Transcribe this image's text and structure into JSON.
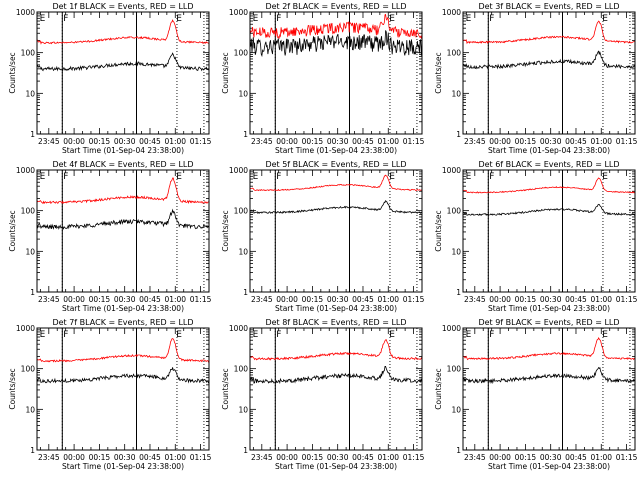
{
  "figure": {
    "background": "#ffffff",
    "axis_color": "#000000",
    "events_color": "#000000",
    "lld_color": "#ff0000"
  },
  "chart_data": [
    {
      "type": "line",
      "title": "Det 1f BLACK = Events, RED = LLD",
      "xlabel": "Start Time (01-Sep-04 23:38:00)",
      "ylabel": "Counts/sec",
      "xlim": [
        "23:38:00",
        "01:20:00"
      ],
      "ylim": [
        1,
        1000
      ],
      "yscale": "log",
      "xticks": [
        "23:45",
        "00:00",
        "00:15",
        "00:30",
        "00:45",
        "01:00",
        "01:15"
      ],
      "yticks": [
        "1",
        "10",
        "100",
        "1000"
      ],
      "vlines_solid": [
        "23:53:00",
        "00:37:00"
      ],
      "vlines_dotted": [
        "23:53:00",
        "01:01:00",
        "01:17:00"
      ],
      "markers": [
        {
          "label": "E",
          "time": "23:39:00"
        },
        {
          "label": "F",
          "time": "23:53:00"
        },
        {
          "label": "E",
          "time": "01:00:00"
        }
      ],
      "series": [
        {
          "name": "Events",
          "color": "#000000",
          "level": 40,
          "flare_peak": 85,
          "noise": 0.1
        },
        {
          "name": "LLD",
          "color": "#ff0000",
          "level": 175,
          "flare_peak": 590,
          "noise": 0.05
        }
      ]
    },
    {
      "type": "line",
      "title": "Det 2f BLACK = Events, RED = LLD",
      "xlabel": "Start Time (01-Sep-04 23:38:00)",
      "ylabel": "Counts/sec",
      "xlim": [
        "23:38:00",
        "01:20:00"
      ],
      "ylim": [
        1,
        1000
      ],
      "yscale": "log",
      "xticks": [
        "23:45",
        "00:00",
        "00:15",
        "00:30",
        "00:45",
        "01:00",
        "01:15"
      ],
      "yticks": [
        "1",
        "10",
        "100",
        "1000"
      ],
      "vlines_solid": [
        "23:53:00",
        "00:37:00"
      ],
      "vlines_dotted": [
        "23:53:00",
        "01:01:00",
        "01:17:00"
      ],
      "markers": [
        {
          "label": "E",
          "time": "23:39:00"
        },
        {
          "label": "F",
          "time": "23:53:00"
        },
        {
          "label": "E",
          "time": "01:00:00"
        }
      ],
      "series": [
        {
          "name": "Events",
          "color": "#000000",
          "level": 150,
          "flare_peak": 240,
          "noise": 0.45
        },
        {
          "name": "LLD",
          "color": "#ff0000",
          "level": 320,
          "flare_peak": 700,
          "noise": 0.3
        }
      ]
    },
    {
      "type": "line",
      "title": "Det 3f BLACK = Events, RED = LLD",
      "xlabel": "Start Time (01-Sep-04 23:38:00)",
      "ylabel": "Counts/sec",
      "xlim": [
        "23:38:00",
        "01:20:00"
      ],
      "ylim": [
        1,
        1000
      ],
      "yscale": "log",
      "xticks": [
        "23:45",
        "00:00",
        "00:15",
        "00:30",
        "00:45",
        "01:00",
        "01:15"
      ],
      "yticks": [
        "1",
        "10",
        "100",
        "1000"
      ],
      "vlines_solid": [
        "23:53:00",
        "00:37:00"
      ],
      "vlines_dotted": [
        "23:53:00",
        "01:01:00",
        "01:17:00"
      ],
      "markers": [
        {
          "label": "E",
          "time": "23:39:00"
        },
        {
          "label": "F",
          "time": "23:53:00"
        },
        {
          "label": "E",
          "time": "01:00:00"
        }
      ],
      "series": [
        {
          "name": "Events",
          "color": "#000000",
          "level": 45,
          "flare_peak": 95,
          "noise": 0.1
        },
        {
          "name": "LLD",
          "color": "#ff0000",
          "level": 180,
          "flare_peak": 560,
          "noise": 0.05
        }
      ]
    },
    {
      "type": "line",
      "title": "Det 4f BLACK = Events, RED = LLD",
      "xlabel": "Start Time (01-Sep-04 23:38:00)",
      "ylabel": "Counts/sec",
      "xlim": [
        "23:38:00",
        "01:20:00"
      ],
      "ylim": [
        1,
        1000
      ],
      "yscale": "log",
      "xticks": [
        "23:45",
        "00:00",
        "00:15",
        "00:30",
        "00:45",
        "01:00",
        "01:15"
      ],
      "yticks": [
        "1",
        "10",
        "100",
        "1000"
      ],
      "vlines_solid": [
        "23:53:00",
        "00:37:00"
      ],
      "vlines_dotted": [
        "23:53:00",
        "01:01:00",
        "01:17:00"
      ],
      "markers": [
        {
          "label": "E",
          "time": "23:39:00"
        },
        {
          "label": "F",
          "time": "23:53:00"
        },
        {
          "label": "E",
          "time": "01:00:00"
        }
      ],
      "series": [
        {
          "name": "Events",
          "color": "#000000",
          "level": 40,
          "flare_peak": 90,
          "noise": 0.12
        },
        {
          "name": "LLD",
          "color": "#ff0000",
          "level": 160,
          "flare_peak": 600,
          "noise": 0.06
        }
      ]
    },
    {
      "type": "line",
      "title": "Det 5f BLACK = Events, RED = LLD",
      "xlabel": "Start Time (01-Sep-04 23:38:00)",
      "ylabel": "Counts/sec",
      "xlim": [
        "23:38:00",
        "01:20:00"
      ],
      "ylim": [
        1,
        1000
      ],
      "yscale": "log",
      "xticks": [
        "23:45",
        "00:00",
        "00:15",
        "00:30",
        "00:45",
        "01:00",
        "01:15"
      ],
      "yticks": [
        "1",
        "10",
        "100",
        "1000"
      ],
      "vlines_solid": [
        "23:53:00",
        "00:37:00"
      ],
      "vlines_dotted": [
        "23:53:00",
        "01:01:00",
        "01:17:00"
      ],
      "markers": [
        {
          "label": "E",
          "time": "23:39:00"
        },
        {
          "label": "F",
          "time": "23:53:00"
        },
        {
          "label": "E",
          "time": "01:00:00"
        }
      ],
      "series": [
        {
          "name": "Events",
          "color": "#000000",
          "level": 90,
          "flare_peak": 160,
          "noise": 0.05
        },
        {
          "name": "LLD",
          "color": "#ff0000",
          "level": 320,
          "flare_peak": 700,
          "noise": 0.03
        }
      ]
    },
    {
      "type": "line",
      "title": "Det 6f BLACK = Events, RED = LLD",
      "xlabel": "Start Time (01-Sep-04 23:38:00)",
      "ylabel": "Counts/sec",
      "xlim": [
        "23:38:00",
        "01:20:00"
      ],
      "ylim": [
        1,
        1000
      ],
      "yscale": "log",
      "xticks": [
        "23:45",
        "00:00",
        "00:15",
        "00:30",
        "00:45",
        "01:00",
        "01:15"
      ],
      "yticks": [
        "1",
        "10",
        "100",
        "1000"
      ],
      "vlines_solid": [
        "23:53:00",
        "00:37:00"
      ],
      "vlines_dotted": [
        "23:53:00",
        "01:01:00",
        "01:17:00"
      ],
      "markers": [
        {
          "label": "E",
          "time": "23:39:00"
        },
        {
          "label": "F",
          "time": "23:53:00"
        },
        {
          "label": "E",
          "time": "01:00:00"
        }
      ],
      "series": [
        {
          "name": "Events",
          "color": "#000000",
          "level": 80,
          "flare_peak": 130,
          "noise": 0.05
        },
        {
          "name": "LLD",
          "color": "#ff0000",
          "level": 280,
          "flare_peak": 600,
          "noise": 0.03
        }
      ]
    },
    {
      "type": "line",
      "title": "Det 7f BLACK = Events, RED = LLD",
      "xlabel": "Start Time (01-Sep-04 23:38:00)",
      "ylabel": "Counts/sec",
      "xlim": [
        "23:38:00",
        "01:20:00"
      ],
      "ylim": [
        1,
        1000
      ],
      "yscale": "log",
      "xticks": [
        "23:45",
        "00:00",
        "00:15",
        "00:30",
        "00:45",
        "01:00",
        "01:15"
      ],
      "yticks": [
        "1",
        "10",
        "100",
        "1000"
      ],
      "vlines_solid": [
        "23:53:00",
        "00:37:00"
      ],
      "vlines_dotted": [
        "23:53:00",
        "01:01:00",
        "01:17:00"
      ],
      "markers": [
        {
          "label": "E",
          "time": "23:39:00"
        },
        {
          "label": "F",
          "time": "23:53:00"
        },
        {
          "label": "E",
          "time": "01:00:00"
        }
      ],
      "series": [
        {
          "name": "Events",
          "color": "#000000",
          "level": 50,
          "flare_peak": 95,
          "noise": 0.1
        },
        {
          "name": "LLD",
          "color": "#ff0000",
          "level": 155,
          "flare_peak": 520,
          "noise": 0.05
        }
      ]
    },
    {
      "type": "line",
      "title": "Det 8f BLACK = Events, RED = LLD",
      "xlabel": "Start Time (01-Sep-04 23:38:00)",
      "ylabel": "Counts/sec",
      "xlim": [
        "23:38:00",
        "01:20:00"
      ],
      "ylim": [
        1,
        1000
      ],
      "yscale": "log",
      "xticks": [
        "23:45",
        "00:00",
        "00:15",
        "00:30",
        "00:45",
        "01:00",
        "01:15"
      ],
      "yticks": [
        "1",
        "10",
        "100",
        "1000"
      ],
      "vlines_solid": [
        "23:53:00",
        "00:37:00"
      ],
      "vlines_dotted": [
        "23:53:00",
        "01:01:00",
        "01:17:00"
      ],
      "markers": [
        {
          "label": "E",
          "time": "23:39:00"
        },
        {
          "label": "F",
          "time": "23:53:00"
        },
        {
          "label": "E",
          "time": "01:00:00"
        }
      ],
      "series": [
        {
          "name": "Events",
          "color": "#000000",
          "level": 50,
          "flare_peak": 100,
          "noise": 0.12
        },
        {
          "name": "LLD",
          "color": "#ff0000",
          "level": 175,
          "flare_peak": 480,
          "noise": 0.06
        }
      ]
    },
    {
      "type": "line",
      "title": "Det 9f BLACK = Events, RED = LLD",
      "xlabel": "Start Time (01-Sep-04 23:38:00)",
      "ylabel": "Counts/sec",
      "xlim": [
        "23:38:00",
        "01:20:00"
      ],
      "ylim": [
        1,
        1000
      ],
      "yscale": "log",
      "xticks": [
        "23:45",
        "00:00",
        "00:15",
        "00:30",
        "00:45",
        "01:00",
        "01:15"
      ],
      "yticks": [
        "1",
        "10",
        "100",
        "1000"
      ],
      "vlines_solid": [
        "23:53:00",
        "00:37:00"
      ],
      "vlines_dotted": [
        "23:53:00",
        "01:01:00",
        "01:17:00"
      ],
      "markers": [
        {
          "label": "E",
          "time": "23:39:00"
        },
        {
          "label": "F",
          "time": "23:53:00"
        },
        {
          "label": "E",
          "time": "01:00:00"
        }
      ],
      "series": [
        {
          "name": "Events",
          "color": "#000000",
          "level": 50,
          "flare_peak": 95,
          "noise": 0.1
        },
        {
          "name": "LLD",
          "color": "#ff0000",
          "level": 175,
          "flare_peak": 540,
          "noise": 0.05
        }
      ]
    }
  ]
}
